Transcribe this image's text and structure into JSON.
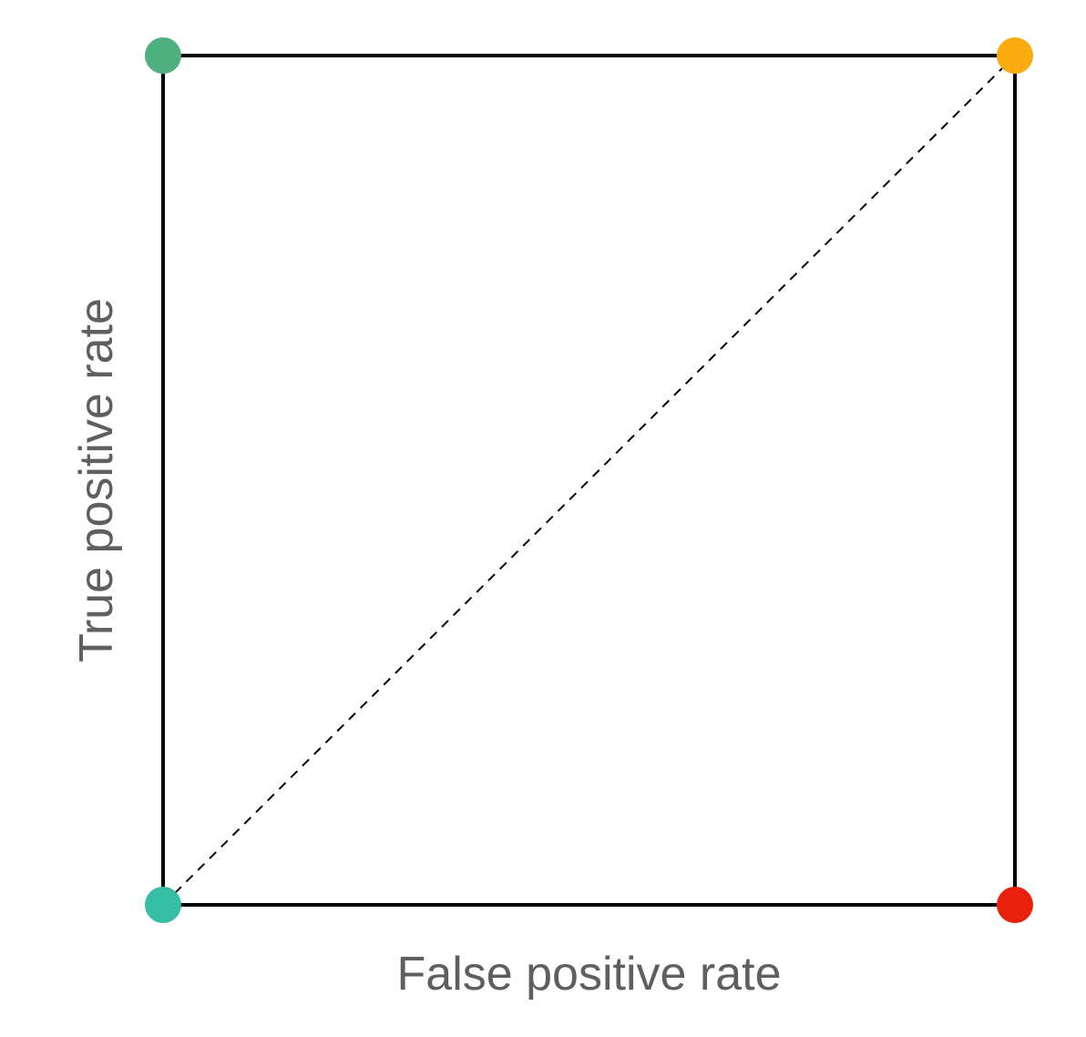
{
  "chart_data": {
    "type": "scatter",
    "title": "",
    "xlabel": "False positive rate",
    "ylabel": "True positive rate",
    "xlim": [
      0,
      1
    ],
    "ylim": [
      0,
      1
    ],
    "grid": false,
    "reference_line": {
      "x": [
        0,
        1
      ],
      "y": [
        0,
        1
      ],
      "style": "dashed",
      "color": "#000000"
    },
    "points": [
      {
        "x": 0,
        "y": 1,
        "color": "#4fb07f"
      },
      {
        "x": 1,
        "y": 1,
        "color": "#f9ab10"
      },
      {
        "x": 0,
        "y": 0,
        "color": "#35bea3"
      },
      {
        "x": 1,
        "y": 0,
        "color": "#e8200c"
      }
    ]
  }
}
